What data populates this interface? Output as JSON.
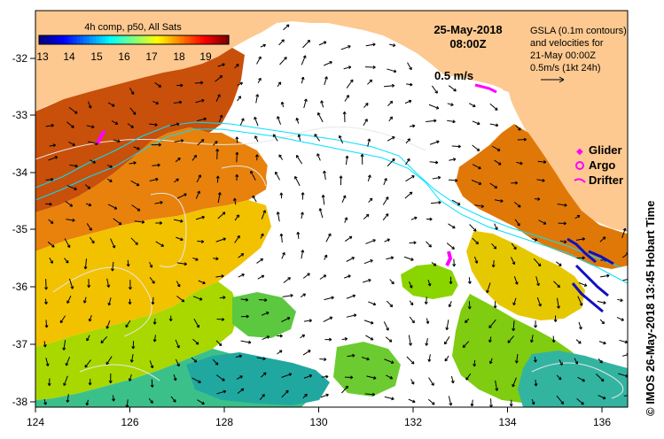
{
  "title": {
    "composite": "4h comp, p50, All Sats",
    "date": "25-May-2018",
    "time": "08:00Z"
  },
  "colorbar": {
    "ticks": [
      "13",
      "14",
      "15",
      "16",
      "17",
      "18",
      "19"
    ],
    "colors": [
      "#00007f",
      "#0000ff",
      "#007fff",
      "#00ffff",
      "#7fff7f",
      "#ffff00",
      "#ff7f00",
      "#ff0000",
      "#7f0000"
    ]
  },
  "gsla_note": {
    "line1": "GSLA (0.1m contours)",
    "line2": "and velocities for",
    "line3": "21-May 00:00Z",
    "line4": "0.5m/s (1kt 24h)"
  },
  "velocity_scale": "0.5 m/s",
  "legend": {
    "glider": "Glider",
    "argo": "Argo",
    "drifter": "Drifter"
  },
  "credit": "© IMOS 26-May-2018 13:45 Hobart Time",
  "axes": {
    "x_ticks": [
      "124",
      "126",
      "128",
      "130",
      "132",
      "134",
      "136"
    ],
    "y_ticks": [
      "-32",
      "-33",
      "-34",
      "-35",
      "-36",
      "-37",
      "-38"
    ]
  },
  "colors": {
    "land": "#fdc990",
    "shelf_contour": "#00e0ff",
    "marker": "#ff00ff"
  }
}
